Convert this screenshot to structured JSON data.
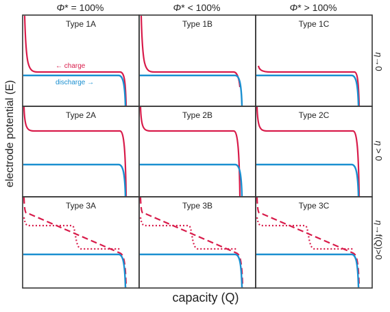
{
  "columns": [
    {
      "sym": "Φ",
      "rest": "* = 100%"
    },
    {
      "sym": "Φ",
      "rest": "* < 100%"
    },
    {
      "sym": "Φ",
      "rest": "* > 100%"
    }
  ],
  "rows": [
    {
      "label_sym": "η",
      "label_rest": "→0"
    },
    {
      "label_sym": "η",
      "label_rest": " > 0"
    },
    {
      "label_sym": "η",
      "label_rest": "→f(Q)>0"
    }
  ],
  "panels": [
    [
      "Type 1A",
      "Type 1B",
      "Type 1C"
    ],
    [
      "Type 2A",
      "Type 2B",
      "Type 2C"
    ],
    [
      "Type 3A",
      "Type 3B",
      "Type 3C"
    ]
  ],
  "annotations": {
    "charge": "← charge",
    "discharge": "discharge →"
  },
  "axes": {
    "y": "electrode potential (E)",
    "x": "capacity (Q)"
  },
  "colors": {
    "charge": "#d81b4a",
    "discharge": "#1a8fd0",
    "border": "#333333"
  }
}
